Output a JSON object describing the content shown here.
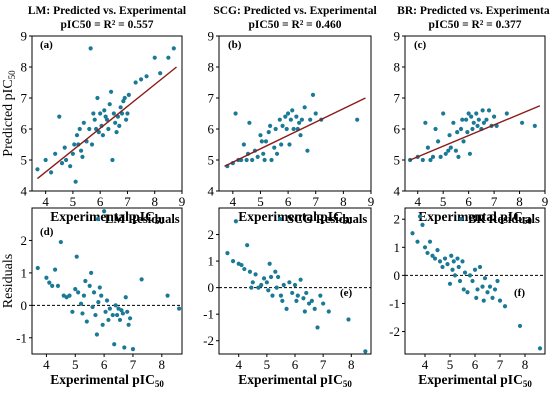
{
  "chart_data": [
    {
      "id": "a",
      "type": "scatter",
      "title": "LM: Predicted vs. Experimental",
      "subtitle": "pIC50 = R² = 0.557",
      "panel_label": "(a)",
      "xlabel": "Experimental pIC50",
      "ylabel": "Predicted pIC50",
      "xlim": [
        3.5,
        9
      ],
      "ylim": [
        4,
        9
      ],
      "xticks": [
        4,
        5,
        6,
        7,
        8,
        9
      ],
      "yticks": [
        4,
        5,
        6,
        7,
        8,
        9
      ],
      "point_color": "#1a7a96",
      "line_color": "#8b1a1a",
      "fit_line": {
        "x": [
          3.7,
          8.8
        ],
        "y": [
          4.4,
          8.0
        ]
      },
      "x": [
        3.7,
        4.0,
        4.2,
        4.35,
        4.5,
        4.6,
        4.7,
        4.75,
        4.9,
        5.0,
        5.05,
        5.1,
        5.15,
        5.2,
        5.25,
        5.3,
        5.35,
        5.4,
        5.5,
        5.6,
        5.65,
        5.7,
        5.75,
        5.8,
        5.85,
        5.9,
        5.95,
        6.0,
        6.05,
        6.1,
        6.15,
        6.2,
        6.25,
        6.3,
        6.35,
        6.4,
        6.45,
        6.5,
        6.55,
        6.6,
        6.65,
        6.7,
        6.75,
        6.8,
        6.85,
        6.9,
        6.95,
        7.0,
        7.05,
        7.3,
        7.5,
        7.7,
        8.0,
        8.2,
        8.5,
        8.7
      ],
      "y": [
        4.7,
        5.0,
        4.6,
        5.2,
        6.4,
        4.9,
        5.4,
        5.0,
        4.8,
        5.2,
        5.5,
        4.3,
        5.8,
        5.5,
        6.0,
        5.3,
        5.1,
        6.2,
        5.6,
        6.0,
        8.6,
        5.5,
        6.5,
        6.3,
        6.0,
        7.0,
        5.9,
        6.5,
        6.1,
        5.8,
        6.6,
        6.4,
        6.3,
        6.0,
        6.8,
        7.2,
        5.0,
        6.5,
        6.2,
        5.9,
        6.4,
        6.1,
        6.7,
        6.5,
        6.9,
        7.0,
        6.3,
        6.5,
        7.1,
        7.5,
        7.6,
        7.7,
        8.3,
        7.8,
        8.3,
        8.6
      ]
    },
    {
      "id": "b",
      "type": "scatter",
      "title": "SCG: Predicted vs. Experimental",
      "subtitle": "pIC50 = R² = 0.460",
      "panel_label": "(b)",
      "xlabel": "Experimental pIC50",
      "ylabel": "",
      "xlim": [
        3.5,
        9
      ],
      "ylim": [
        4,
        9
      ],
      "xticks": [
        4,
        5,
        6,
        7,
        8,
        9
      ],
      "yticks": [
        4,
        5,
        6,
        7,
        8,
        9
      ],
      "point_color": "#1a7a96",
      "line_color": "#8b1a1a",
      "fit_line": {
        "x": [
          3.7,
          8.8
        ],
        "y": [
          4.8,
          7.0
        ]
      },
      "x": [
        3.8,
        4.0,
        4.1,
        4.2,
        4.3,
        4.4,
        4.5,
        4.55,
        4.6,
        4.7,
        4.8,
        4.9,
        5.0,
        5.05,
        5.1,
        5.15,
        5.2,
        5.3,
        5.35,
        5.4,
        5.5,
        5.55,
        5.6,
        5.7,
        5.75,
        5.8,
        5.9,
        5.95,
        6.0,
        6.05,
        6.1,
        6.15,
        6.2,
        6.3,
        6.35,
        6.4,
        6.45,
        6.5,
        6.6,
        6.7,
        6.8,
        6.9,
        7.0,
        7.2,
        8.5
      ],
      "y": [
        4.8,
        4.9,
        6.5,
        5.0,
        5.0,
        5.5,
        5.0,
        5.2,
        6.2,
        5.0,
        5.3,
        5.1,
        5.8,
        5.6,
        5.2,
        5.0,
        5.6,
        5.9,
        6.1,
        5.0,
        5.4,
        6.0,
        5.2,
        6.3,
        5.5,
        6.1,
        6.4,
        6.0,
        6.5,
        5.5,
        6.3,
        6.6,
        6.0,
        6.4,
        6.0,
        6.2,
        5.8,
        6.3,
        6.7,
        5.3,
        6.3,
        7.1,
        6.5,
        6.3,
        6.3
      ]
    },
    {
      "id": "c",
      "type": "scatter",
      "title": "BR: Predicted vs. Experimental",
      "subtitle": "pIC50 = R² = 0.377",
      "panel_label": "(c)",
      "xlabel": "Experimental pIC50",
      "ylabel": "",
      "xlim": [
        3.5,
        9
      ],
      "ylim": [
        4,
        9
      ],
      "xticks": [
        4,
        5,
        6,
        7,
        8,
        9
      ],
      "yticks": [
        4,
        5,
        6,
        7,
        8,
        9
      ],
      "point_color": "#1a7a96",
      "line_color": "#8b1a1a",
      "fit_line": {
        "x": [
          3.7,
          8.8
        ],
        "y": [
          5.0,
          6.75
        ]
      },
      "x": [
        3.7,
        4.0,
        4.2,
        4.3,
        4.4,
        4.5,
        4.6,
        4.7,
        4.8,
        4.9,
        5.0,
        5.1,
        5.2,
        5.25,
        5.3,
        5.4,
        5.5,
        5.55,
        5.6,
        5.7,
        5.75,
        5.8,
        5.9,
        5.95,
        6.0,
        6.05,
        6.1,
        6.15,
        6.2,
        6.3,
        6.35,
        6.4,
        6.5,
        6.55,
        6.6,
        6.7,
        6.8,
        6.9,
        7.0,
        7.1,
        7.5,
        8.1,
        8.6
      ],
      "y": [
        5.0,
        5.1,
        5.0,
        6.2,
        5.4,
        5.0,
        5.1,
        6.0,
        5.6,
        5.1,
        6.5,
        5.2,
        5.3,
        5.8,
        5.4,
        6.2,
        5.3,
        5.9,
        5.1,
        6.0,
        6.3,
        5.6,
        6.3,
        5.9,
        6.5,
        5.2,
        6.4,
        6.0,
        6.2,
        6.5,
        6.1,
        6.3,
        6.0,
        6.6,
        6.2,
        6.3,
        6.6,
        6.1,
        6.4,
        6.1,
        6.5,
        6.2,
        6.1
      ]
    },
    {
      "id": "d",
      "type": "scatter",
      "title": "",
      "legend_text": "LM Residuals",
      "panel_label": "(d)",
      "xlabel": "Experimental pIC50",
      "ylabel": "Residuals",
      "xlim": [
        3.5,
        8.7
      ],
      "ylim": [
        -1.5,
        3.0
      ],
      "xticks": [
        4,
        5,
        6,
        7,
        8
      ],
      "yticks": [
        -1,
        0,
        1,
        2
      ],
      "zero_line": true,
      "point_color": "#1a7a96",
      "x": [
        3.7,
        4.0,
        4.1,
        4.2,
        4.3,
        4.4,
        4.5,
        4.6,
        4.7,
        4.8,
        4.9,
        5.0,
        5.05,
        5.1,
        5.2,
        5.25,
        5.3,
        5.35,
        5.4,
        5.5,
        5.55,
        5.6,
        5.65,
        5.7,
        5.75,
        5.8,
        5.85,
        5.9,
        5.95,
        6.0,
        6.05,
        6.1,
        6.15,
        6.2,
        6.3,
        6.35,
        6.4,
        6.45,
        6.5,
        6.55,
        6.6,
        6.65,
        6.7,
        6.75,
        6.8,
        6.85,
        6.9,
        7.0,
        7.3,
        8.2,
        8.6
      ],
      "y": [
        1.15,
        0.85,
        0.7,
        0.6,
        1.1,
        0.6,
        1.95,
        0.3,
        0.25,
        0.3,
        -0.2,
        0.5,
        1.5,
        0.4,
        0.05,
        -0.25,
        0.3,
        0.75,
        -0.5,
        0.6,
        1.0,
        -0.05,
        0.4,
        -0.3,
        -0.9,
        0.1,
        0.55,
        0.3,
        -0.6,
        2.9,
        -0.2,
        0.15,
        -0.45,
        -0.1,
        -0.3,
        -1.2,
        0.0,
        -0.3,
        -0.1,
        -0.45,
        -0.15,
        -0.25,
        -1.3,
        0.25,
        -0.2,
        -0.6,
        -0.4,
        -1.35,
        0.8,
        0.3,
        -0.1
      ]
    },
    {
      "id": "e",
      "type": "scatter",
      "title": "",
      "legend_text": "SCG Residuals",
      "panel_label": "(e)",
      "xlabel": "Experimental pIC50",
      "ylabel": "",
      "xlim": [
        3.3,
        8.7
      ],
      "ylim": [
        -2.5,
        3.0
      ],
      "xticks": [
        4,
        5,
        6,
        7,
        8
      ],
      "yticks": [
        -2,
        -1,
        0,
        1,
        2
      ],
      "zero_line": true,
      "point_color": "#1a7a96",
      "x": [
        3.6,
        3.8,
        3.9,
        4.0,
        4.1,
        4.2,
        4.3,
        4.4,
        4.45,
        4.5,
        4.6,
        4.7,
        4.8,
        4.9,
        5.0,
        5.05,
        5.1,
        5.15,
        5.2,
        5.3,
        5.35,
        5.4,
        5.5,
        5.55,
        5.6,
        5.7,
        5.8,
        5.9,
        6.0,
        6.05,
        6.1,
        6.2,
        6.3,
        6.35,
        6.4,
        6.5,
        6.6,
        6.7,
        6.8,
        6.9,
        7.0,
        7.2,
        7.9,
        8.5
      ],
      "y": [
        1.3,
        1.0,
        2.5,
        0.9,
        0.85,
        0.7,
        1.6,
        0.6,
        0.0,
        0.2,
        0.5,
        0.0,
        0.1,
        0.35,
        0.2,
        -0.1,
        0.9,
        0.4,
        -0.3,
        0.6,
        0.0,
        0.4,
        -0.3,
        -0.5,
        0.1,
        -0.8,
        0.2,
        -0.2,
        0.1,
        -0.5,
        -0.3,
        0.3,
        -0.4,
        -0.9,
        -0.2,
        -0.6,
        -0.5,
        -0.8,
        -1.5,
        -0.3,
        -0.6,
        -0.9,
        -1.2,
        -2.4
      ]
    },
    {
      "id": "f",
      "type": "scatter",
      "title": "",
      "legend_text": "BR Residuals",
      "panel_label": "(f)",
      "xlabel": "Experimental pIC50",
      "ylabel": "",
      "xlim": [
        3.2,
        8.8
      ],
      "ylim": [
        -2.8,
        2.4
      ],
      "xticks": [
        4,
        5,
        6,
        7,
        8
      ],
      "yticks": [
        -2,
        -1,
        0,
        1,
        2
      ],
      "zero_line": true,
      "point_color": "#1a7a96",
      "x": [
        3.5,
        3.7,
        3.8,
        3.9,
        4.0,
        4.1,
        4.2,
        4.3,
        4.4,
        4.5,
        4.6,
        4.7,
        4.8,
        4.9,
        5.0,
        5.05,
        5.1,
        5.15,
        5.2,
        5.3,
        5.35,
        5.4,
        5.5,
        5.55,
        5.6,
        5.7,
        5.8,
        5.9,
        6.0,
        6.05,
        6.1,
        6.2,
        6.3,
        6.35,
        6.4,
        6.5,
        6.6,
        6.7,
        6.8,
        6.9,
        7.0,
        7.2,
        7.8,
        8.6
      ],
      "y": [
        1.5,
        1.2,
        2.1,
        1.8,
        1.0,
        0.8,
        1.2,
        0.7,
        0.6,
        0.9,
        0.5,
        0.3,
        0.6,
        0.4,
        -0.3,
        0.7,
        0.2,
        0.5,
        0.0,
        0.6,
        0.3,
        -0.2,
        0.5,
        -0.5,
        0.1,
        -0.6,
        0.0,
        -0.2,
        0.2,
        -0.8,
        -0.5,
        0.3,
        -0.4,
        -0.9,
        -0.1,
        -0.6,
        -0.4,
        -0.8,
        -0.5,
        -0.2,
        -0.9,
        -1.1,
        -1.8,
        -2.6
      ]
    }
  ]
}
